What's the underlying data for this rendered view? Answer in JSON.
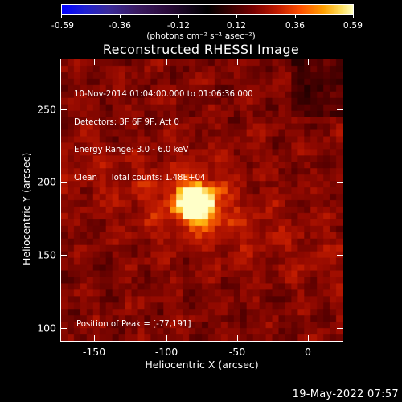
{
  "colorbar": {
    "tick_labels": [
      "-0.59",
      "-0.36",
      "-0.12",
      "0.12",
      "0.36",
      "0.59"
    ],
    "units": "(photons cm⁻² s⁻¹ asec⁻²)"
  },
  "plot": {
    "title": "Reconstructed RHESSI Image",
    "info_lines": [
      "10-Nov-2014 01:04:00.000 to 01:06:36.000",
      "Detectors: 3F 6F 9F, Att 0",
      "Energy Range: 3.0 - 6.0 keV",
      "Clean     Total counts: 1.48E+04"
    ],
    "peak_text": "Position of Peak = [-77,191]",
    "xaxis_title": "Heliocentric X (arcsec)",
    "yaxis_title": "Heliocentric Y (arcsec)",
    "x_ticks": [
      "-150",
      "-100",
      "-50",
      "0"
    ],
    "y_ticks": [
      "250",
      "200",
      "150",
      "100"
    ],
    "x_range": [
      -170,
      25
    ],
    "y_range": [
      96,
      290
    ],
    "peak": {
      "x": -77,
      "y": 191
    }
  },
  "footer": {
    "timestamp": "19-May-2022 07:57"
  },
  "colors": {
    "background": "#000000",
    "foreground": "#ffffff"
  }
}
